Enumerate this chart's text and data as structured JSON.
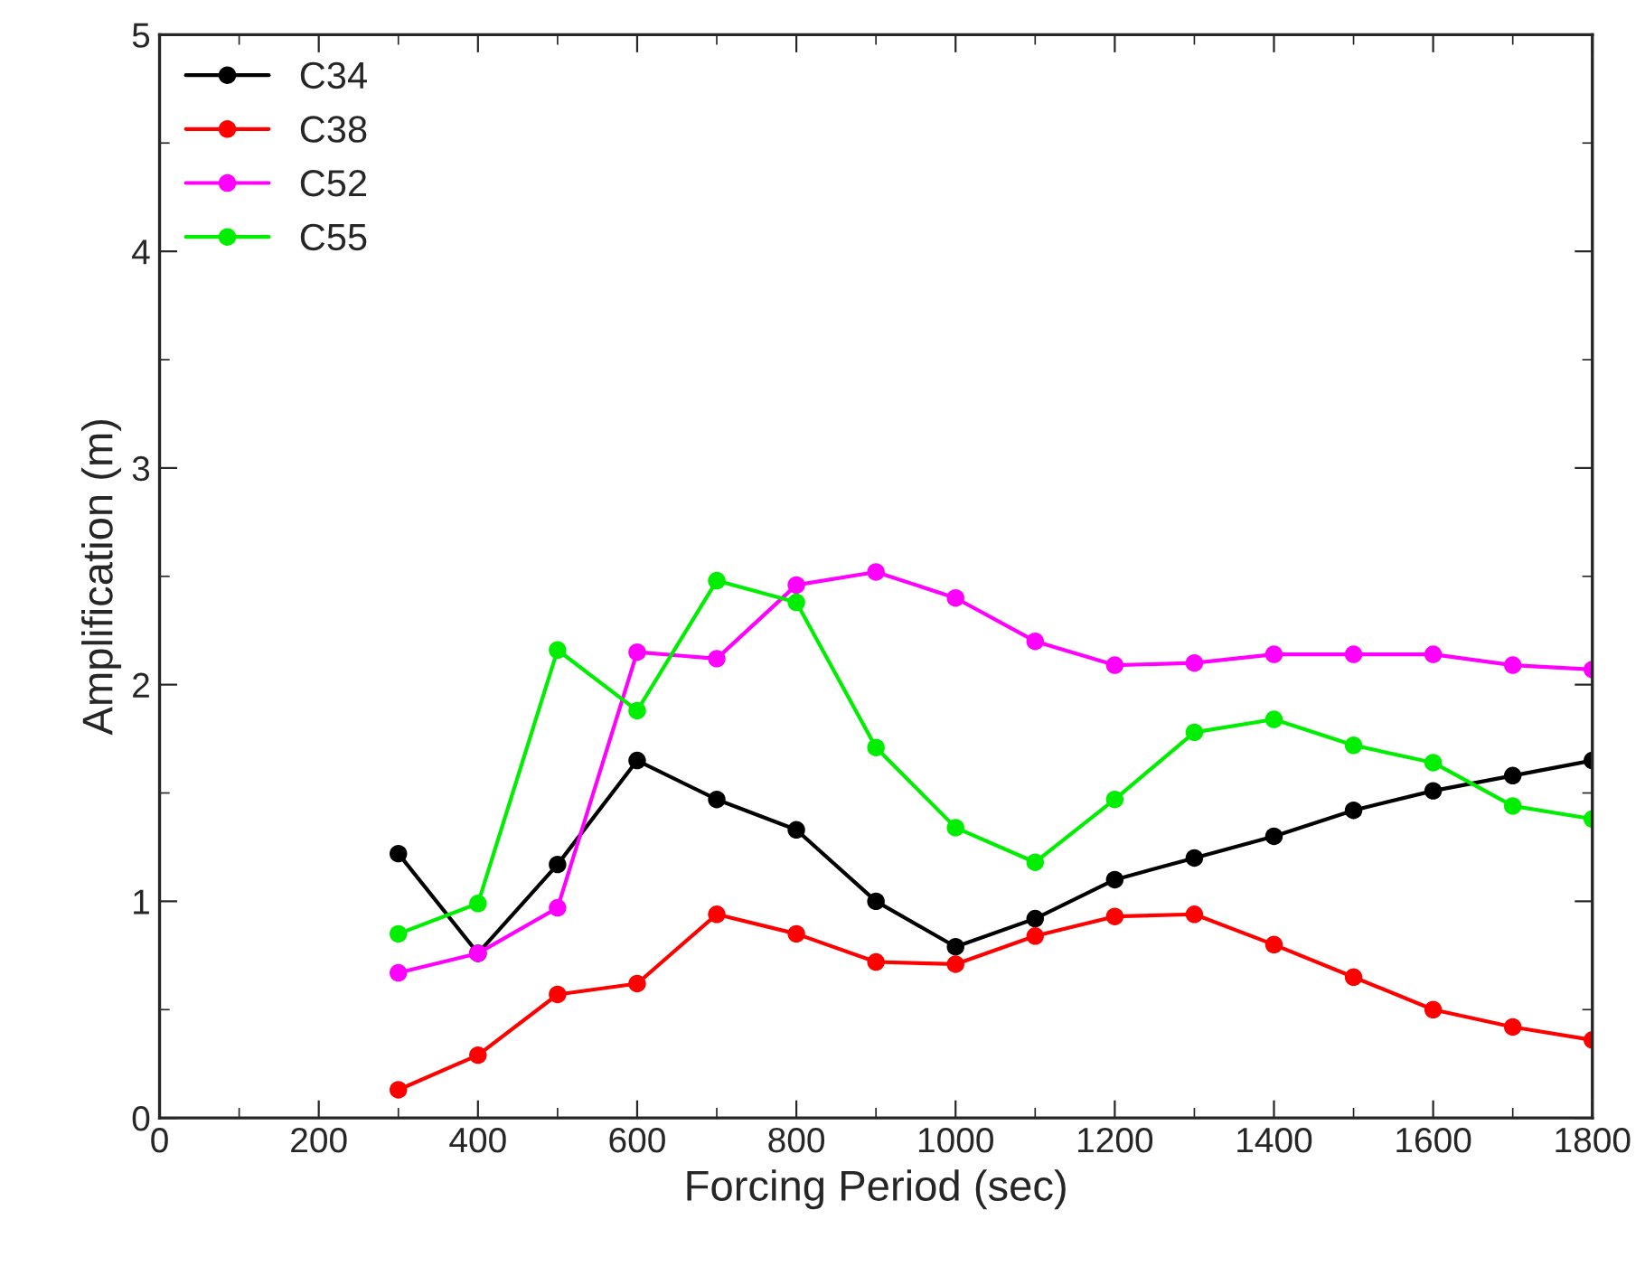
{
  "chart_data": {
    "type": "line",
    "xlabel": "Forcing Period (sec)",
    "ylabel": "Amplification (m)",
    "x": [
      300,
      400,
      500,
      600,
      700,
      800,
      900,
      1000,
      1100,
      1200,
      1300,
      1400,
      1500,
      1600,
      1700,
      1800
    ],
    "series": [
      {
        "name": "C34",
        "color": "#000000",
        "values": [
          1.22,
          0.76,
          1.17,
          1.65,
          1.47,
          1.33,
          1.0,
          0.79,
          0.92,
          1.1,
          1.2,
          1.3,
          1.42,
          1.51,
          1.58,
          1.65
        ]
      },
      {
        "name": "C38",
        "color": "#ff0000",
        "values": [
          0.13,
          0.29,
          0.57,
          0.62,
          0.94,
          0.85,
          0.72,
          0.71,
          0.84,
          0.93,
          0.94,
          0.8,
          0.65,
          0.5,
          0.42,
          0.36
        ]
      },
      {
        "name": "C52",
        "color": "#ff00ff",
        "values": [
          0.67,
          0.76,
          0.97,
          2.15,
          2.12,
          2.46,
          2.52,
          2.4,
          2.2,
          2.09,
          2.1,
          2.14,
          2.14,
          2.14,
          2.09,
          2.07
        ]
      },
      {
        "name": "C55",
        "color": "#00ee00",
        "values": [
          0.85,
          0.99,
          2.16,
          1.88,
          2.48,
          2.38,
          1.71,
          1.34,
          1.18,
          1.47,
          1.78,
          1.84,
          1.72,
          1.64,
          1.44,
          1.38
        ]
      }
    ],
    "xlim": [
      0,
      1800
    ],
    "xticks": [
      0,
      200,
      400,
      600,
      800,
      1000,
      1200,
      1400,
      1600,
      1800
    ],
    "ylim": [
      0,
      5
    ],
    "yticks": [
      0,
      1,
      2,
      3,
      4,
      5
    ],
    "marker": "circle",
    "line_style": "solid",
    "legend": "top left",
    "grid": false
  }
}
